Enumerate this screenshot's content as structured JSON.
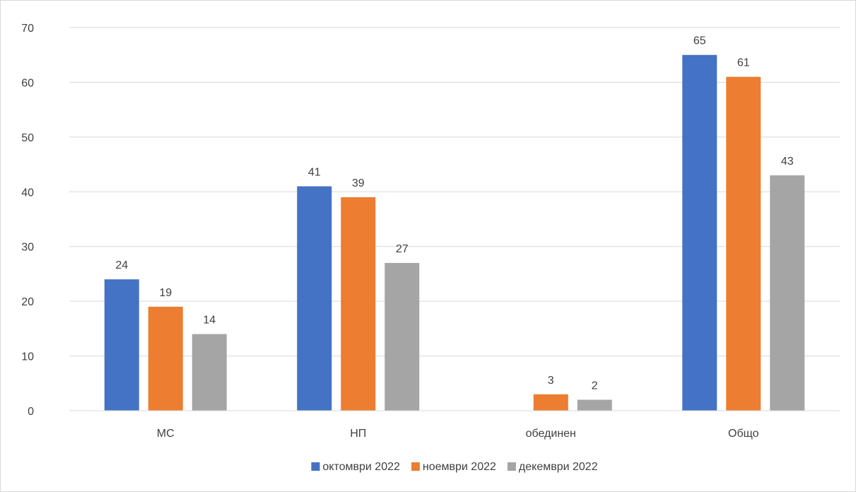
{
  "chart_data": {
    "type": "bar",
    "title": "",
    "xlabel": "",
    "ylabel": "",
    "categories": [
      "МС",
      "НП",
      "обединен",
      "Общо"
    ],
    "series": [
      {
        "name": "октомври 2022",
        "color": "#4472c4",
        "values": [
          24,
          41,
          null,
          65
        ]
      },
      {
        "name": "ноември 2022",
        "color": "#ed7d31",
        "values": [
          19,
          39,
          3,
          61
        ]
      },
      {
        "name": "декември 2022",
        "color": "#a5a5a5",
        "values": [
          14,
          27,
          2,
          43
        ]
      }
    ],
    "ylim": [
      0,
      70
    ],
    "yticks": [
      0,
      10,
      20,
      30,
      40,
      50,
      60,
      70
    ],
    "grid": true,
    "legend_position": "bottom",
    "data_labels": true
  }
}
